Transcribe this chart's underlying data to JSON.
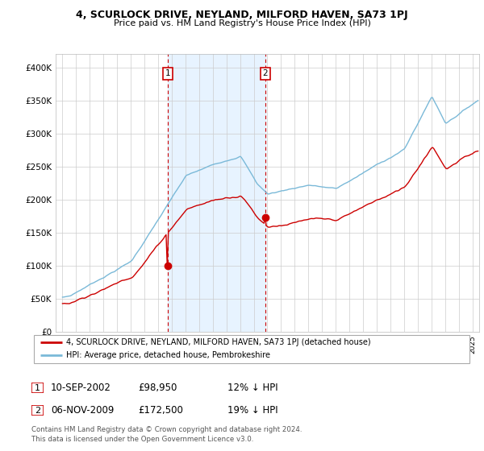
{
  "title": "4, SCURLOCK DRIVE, NEYLAND, MILFORD HAVEN, SA73 1PJ",
  "subtitle": "Price paid vs. HM Land Registry's House Price Index (HPI)",
  "legend_line1": "4, SCURLOCK DRIVE, NEYLAND, MILFORD HAVEN, SA73 1PJ (detached house)",
  "legend_line2": "HPI: Average price, detached house, Pembrokeshire",
  "sale1_date": "10-SEP-2002",
  "sale1_price": "£98,950",
  "sale1_hpi": "12% ↓ HPI",
  "sale2_date": "06-NOV-2009",
  "sale2_price": "£172,500",
  "sale2_hpi": "19% ↓ HPI",
  "footer": "Contains HM Land Registry data © Crown copyright and database right 2024.\nThis data is licensed under the Open Government Licence v3.0.",
  "hpi_color": "#7ab9d8",
  "price_color": "#cc0000",
  "vline_color": "#cc0000",
  "background_color": "#ffffff",
  "grid_color": "#cccccc",
  "ylim": [
    0,
    420000
  ],
  "yticks": [
    0,
    50000,
    100000,
    150000,
    200000,
    250000,
    300000,
    350000,
    400000
  ],
  "sale1_x": 2002.7,
  "sale1_y": 98950,
  "sale2_x": 2009.85,
  "sale2_y": 172500,
  "xlim_left": 1994.5,
  "xlim_right": 2025.5
}
